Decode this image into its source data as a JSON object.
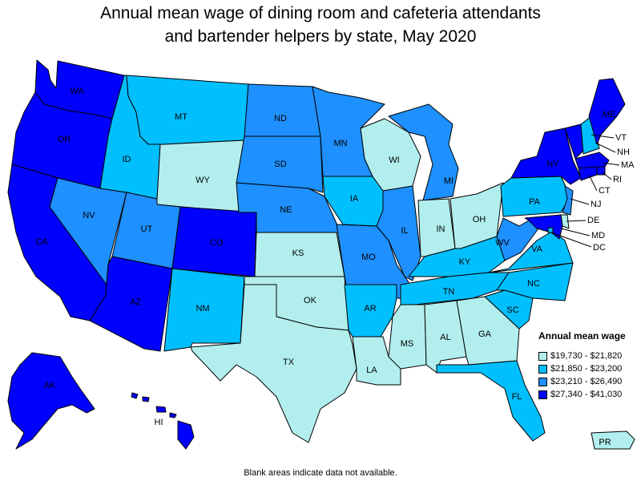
{
  "title_line1": "Annual mean wage of dining room and cafeteria attendants",
  "title_line2": "and bartender helpers by state, May 2020",
  "legend": {
    "title": "Annual mean wage",
    "items": [
      {
        "label": "$19,730 - $21,820",
        "color": "#b2eeee"
      },
      {
        "label": "$21,850 - $23,200",
        "color": "#00bfff"
      },
      {
        "label": "$23,210 - $26,490",
        "color": "#1e90ff"
      },
      {
        "label": "$27,340 - $41,030",
        "color": "#0000ff"
      }
    ]
  },
  "footnote": "Blank areas indicate data not available.",
  "states": {
    "WA": {
      "label": "WA",
      "tier": 4
    },
    "OR": {
      "label": "OR",
      "tier": 4
    },
    "CA": {
      "label": "CA",
      "tier": 4
    },
    "NV": {
      "label": "NV",
      "tier": 3
    },
    "ID": {
      "label": "ID",
      "tier": 2
    },
    "MT": {
      "label": "MT",
      "tier": 2
    },
    "WY": {
      "label": "WY",
      "tier": 1
    },
    "UT": {
      "label": "UT",
      "tier": 3
    },
    "AZ": {
      "label": "AZ",
      "tier": 4
    },
    "CO": {
      "label": "CO",
      "tier": 4
    },
    "NM": {
      "label": "NM",
      "tier": 2
    },
    "ND": {
      "label": "ND",
      "tier": 3
    },
    "SD": {
      "label": "SD",
      "tier": 3
    },
    "NE": {
      "label": "NE",
      "tier": 3
    },
    "KS": {
      "label": "KS",
      "tier": 1
    },
    "OK": {
      "label": "OK",
      "tier": 1
    },
    "TX": {
      "label": "TX",
      "tier": 1
    },
    "MN": {
      "label": "MN",
      "tier": 3
    },
    "IA": {
      "label": "IA",
      "tier": 2
    },
    "MO": {
      "label": "MO",
      "tier": 3
    },
    "AR": {
      "label": "AR",
      "tier": 2
    },
    "LA": {
      "label": "LA",
      "tier": 1
    },
    "WI": {
      "label": "WI",
      "tier": 1
    },
    "IL": {
      "label": "IL",
      "tier": 3
    },
    "MI": {
      "label": "MI",
      "tier": 3
    },
    "IN": {
      "label": "IN",
      "tier": 1
    },
    "OH": {
      "label": "OH",
      "tier": 1
    },
    "KY": {
      "label": "KY",
      "tier": 2
    },
    "TN": {
      "label": "TN",
      "tier": 2
    },
    "MS": {
      "label": "MS",
      "tier": 1
    },
    "AL": {
      "label": "AL",
      "tier": 1
    },
    "GA": {
      "label": "GA",
      "tier": 1
    },
    "FL": {
      "label": "FL",
      "tier": 2
    },
    "SC": {
      "label": "SC",
      "tier": 2
    },
    "NC": {
      "label": "NC",
      "tier": 2
    },
    "VA": {
      "label": "VA",
      "tier": 2
    },
    "WV": {
      "label": "WV",
      "tier": 3
    },
    "PA": {
      "label": "PA",
      "tier": 2
    },
    "NY": {
      "label": "NY",
      "tier": 4
    },
    "VT": {
      "label": "VT",
      "tier": 4
    },
    "NH": {
      "label": "NH",
      "tier": 2
    },
    "ME": {
      "label": "ME",
      "tier": 4
    },
    "MA": {
      "label": "MA",
      "tier": 4
    },
    "RI": {
      "label": "RI",
      "tier": 4
    },
    "CT": {
      "label": "CT",
      "tier": 4
    },
    "NJ": {
      "label": "NJ",
      "tier": 3
    },
    "DE": {
      "label": "DE",
      "tier": 1
    },
    "MD": {
      "label": "MD",
      "tier": 4
    },
    "DC": {
      "label": "DC",
      "tier": 2
    },
    "AK": {
      "label": "AK",
      "tier": 4
    },
    "HI": {
      "label": "HI",
      "tier": 4
    },
    "PR": {
      "label": "PR",
      "tier": 1
    }
  }
}
